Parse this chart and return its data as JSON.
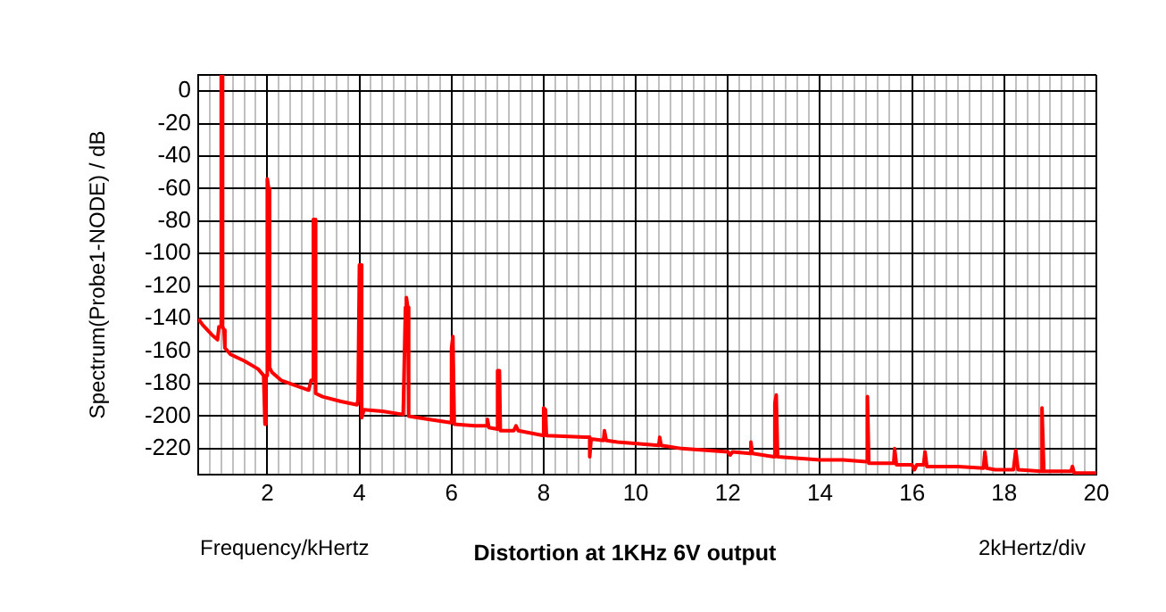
{
  "chart_data": {
    "type": "line",
    "title": "Distortion at 1KHz 6V output",
    "xlabel": "Frequency/kHertz",
    "ylabel": "Spectrum(Probe1-NODE) / dB",
    "annotations": [
      "2kHertz/div"
    ],
    "xlim": [
      0.5,
      20
    ],
    "ylim": [
      -236,
      10
    ],
    "grid": true,
    "legend": false,
    "xticks": [
      {
        "value": 0.75,
        "label": null
      },
      {
        "value": 1,
        "label": null
      },
      {
        "value": 1.25,
        "label": null
      },
      {
        "value": 1.5,
        "label": null
      },
      {
        "value": 1.75,
        "label": null
      },
      2,
      {
        "value": 2.25,
        "label": null
      },
      {
        "value": 2.5,
        "label": null
      },
      {
        "value": 2.75,
        "label": null
      },
      {
        "value": 3,
        "label": null
      },
      {
        "value": 3.25,
        "label": null
      },
      {
        "value": 3.5,
        "label": null
      },
      {
        "value": 3.75,
        "label": null
      },
      4,
      {
        "value": 4.25,
        "label": null
      },
      {
        "value": 4.5,
        "label": null
      },
      {
        "value": 4.75,
        "label": null
      },
      {
        "value": 5,
        "label": null
      },
      {
        "value": 5.25,
        "label": null
      },
      {
        "value": 5.5,
        "label": null
      },
      {
        "value": 5.75,
        "label": null
      },
      6,
      {
        "value": 6.25,
        "label": null
      },
      {
        "value": 6.5,
        "label": null
      },
      {
        "value": 6.75,
        "label": null
      },
      {
        "value": 7,
        "label": null
      },
      {
        "value": 7.25,
        "label": null
      },
      {
        "value": 7.5,
        "label": null
      },
      {
        "value": 7.75,
        "label": null
      },
      8,
      {
        "value": 8.25,
        "label": null
      },
      {
        "value": 8.5,
        "label": null
      },
      {
        "value": 8.75,
        "label": null
      },
      {
        "value": 9,
        "label": null
      },
      {
        "value": 9.25,
        "label": null
      },
      {
        "value": 9.5,
        "label": null
      },
      {
        "value": 9.75,
        "label": null
      },
      10,
      {
        "value": 10.25,
        "label": null
      },
      {
        "value": 10.5,
        "label": null
      },
      {
        "value": 10.75,
        "label": null
      },
      {
        "value": 11,
        "label": null
      },
      {
        "value": 11.25,
        "label": null
      },
      {
        "value": 11.5,
        "label": null
      },
      {
        "value": 11.75,
        "label": null
      },
      12,
      {
        "value": 12.25,
        "label": null
      },
      {
        "value": 12.5,
        "label": null
      },
      {
        "value": 12.75,
        "label": null
      },
      {
        "value": 13,
        "label": null
      },
      {
        "value": 13.25,
        "label": null
      },
      {
        "value": 13.5,
        "label": null
      },
      {
        "value": 13.75,
        "label": null
      },
      14,
      {
        "value": 14.25,
        "label": null
      },
      {
        "value": 14.5,
        "label": null
      },
      {
        "value": 14.75,
        "label": null
      },
      {
        "value": 15,
        "label": null
      },
      {
        "value": 15.25,
        "label": null
      },
      {
        "value": 15.5,
        "label": null
      },
      {
        "value": 15.75,
        "label": null
      },
      16,
      {
        "value": 16.25,
        "label": null
      },
      {
        "value": 16.5,
        "label": null
      },
      {
        "value": 16.75,
        "label": null
      },
      {
        "value": 17,
        "label": null
      },
      {
        "value": 17.25,
        "label": null
      },
      {
        "value": 17.5,
        "label": null
      },
      {
        "value": 17.75,
        "label": null
      },
      18,
      {
        "value": 18.25,
        "label": null
      },
      {
        "value": 18.5,
        "label": null
      },
      {
        "value": 18.75,
        "label": null
      },
      {
        "value": 19,
        "label": null
      },
      {
        "value": 19.25,
        "label": null
      },
      {
        "value": 19.5,
        "label": null
      },
      {
        "value": 19.75,
        "label": null
      },
      20
    ],
    "yticks": [
      {
        "value": 10,
        "label": null
      },
      0,
      -20,
      -40,
      -60,
      -80,
      -100,
      -120,
      -140,
      -160,
      -180,
      -200,
      -220
    ],
    "series": [
      {
        "color": "#ff0000",
        "x": [
          0.5,
          0.6,
          0.8,
          0.92,
          0.95,
          1.0,
          1.0,
          1.03,
          1.03,
          1.06,
          1.08,
          1.2,
          1.5,
          1.8,
          1.92,
          1.95,
          1.97,
          2.0,
          2.0,
          2.03,
          2.05,
          2.1,
          2.3,
          2.6,
          2.9,
          2.95,
          3.0,
          3.0,
          3.03,
          3.05,
          3.2,
          3.6,
          3.95,
          3.97,
          4.0,
          4.03,
          4.05,
          4.1,
          4.5,
          4.95,
          5.0,
          5.02,
          5.05,
          5.07,
          5.5,
          5.98,
          6.0,
          6.03,
          6.06,
          6.5,
          6.75,
          6.78,
          6.81,
          7.0,
          7.0,
          7.04,
          7.06,
          7.35,
          7.4,
          7.45,
          8.0,
          8.0,
          8.04,
          8.06,
          8.9,
          9.0,
          9.0,
          9.03,
          9.3,
          9.32,
          9.36,
          9.6,
          10.5,
          10.52,
          10.55,
          11.0,
          12.0,
          12.05,
          12.1,
          12.48,
          12.5,
          12.53,
          13.0,
          13.02,
          13.05,
          13.08,
          14.0,
          14.5,
          15.0,
          15.03,
          15.06,
          15.6,
          15.62,
          15.66,
          16.0,
          16.05,
          16.1,
          16.25,
          16.28,
          16.32,
          17.0,
          17.55,
          17.58,
          17.62,
          17.8,
          18.2,
          18.25,
          18.3,
          18.8,
          18.82,
          18.86,
          19.45,
          19.48,
          19.52,
          20
        ],
        "values": [
          -140,
          -144,
          -150,
          -153,
          -145,
          -145,
          10,
          10,
          -145,
          -147,
          -158,
          -162,
          -166,
          -171,
          -175,
          -205,
          -175,
          -175,
          -54,
          -60,
          -170,
          -173,
          -178,
          -181,
          -184,
          -178,
          -178,
          -79,
          -79,
          -186,
          -188,
          -191,
          -193,
          -190,
          -107,
          -107,
          -201,
          -196,
          -197,
          -199,
          -133,
          -127,
          -133,
          -200,
          -202,
          -204,
          -158,
          -151,
          -205,
          -206,
          -206,
          -202,
          -207,
          -208,
          -172,
          -172,
          -209,
          -209,
          -206,
          -209,
          -212,
          -195,
          -196,
          -212,
          -213,
          -213,
          -225,
          -214,
          -215,
          -209,
          -215,
          -216,
          -218,
          -213,
          -218,
          -220,
          -222,
          -224,
          -222,
          -223,
          -216,
          -223,
          -225,
          -192,
          -187,
          -225,
          -227,
          -227,
          -228,
          -188,
          -229,
          -229,
          -220,
          -230,
          -230,
          -233,
          -230,
          -230,
          -222,
          -231,
          -231,
          -232,
          -222,
          -232,
          -233,
          -233,
          -221,
          -233,
          -234,
          -195,
          -234,
          -234,
          -231,
          -235,
          -235
        ]
      }
    ]
  }
}
